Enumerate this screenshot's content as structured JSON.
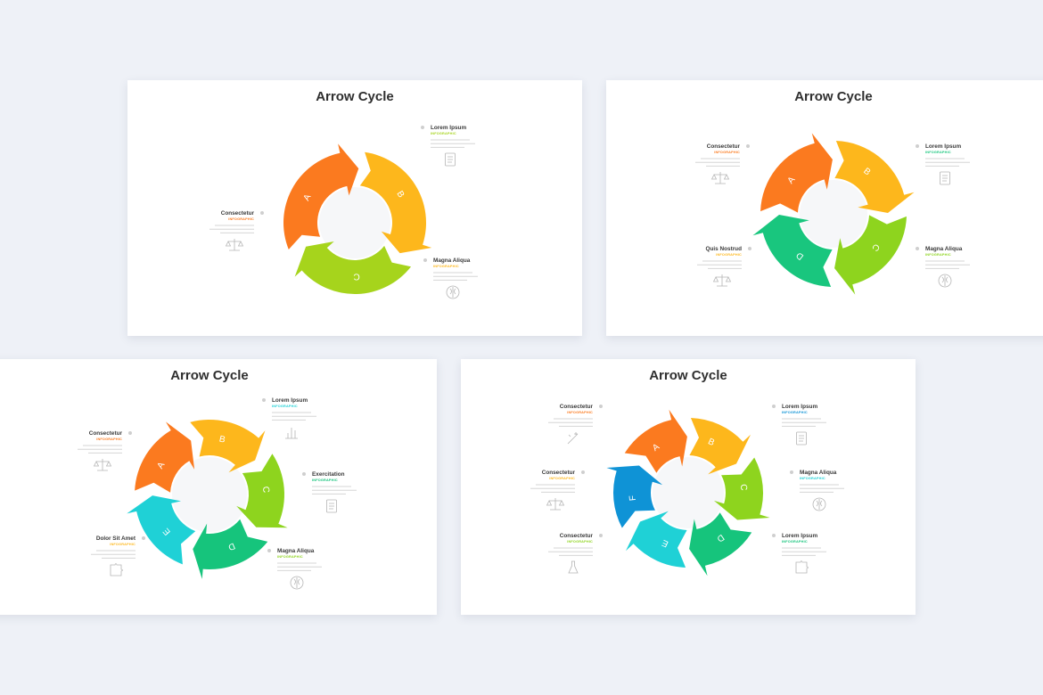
{
  "slides": [
    {
      "id": "s1",
      "title": "Arrow Cycle",
      "segments": [
        {
          "letter": "A",
          "color": "#fb7a1f",
          "label": "Consectetur",
          "sub": "INFOGRAPHIC",
          "icon": "scale-icon"
        },
        {
          "letter": "B",
          "color": "#fdb71c",
          "label": "Magna Aliqua",
          "sub": "INFOGRAPHIC",
          "icon": "brain-icon"
        },
        {
          "letter": "C",
          "color": "#a6d41c",
          "label": "Lorem Ipsum",
          "sub": "INFOGRAPHIC",
          "icon": "clipboard-icon"
        }
      ]
    },
    {
      "id": "s2",
      "title": "Arrow Cycle",
      "segments": [
        {
          "letter": "A",
          "color": "#fb7a1f",
          "label": "Consectetur",
          "sub": "INFOGRAPHIC",
          "icon": "scale-icon"
        },
        {
          "letter": "B",
          "color": "#fdb71c",
          "label": "Quis Nostrud",
          "sub": "INFOGRAPHIC",
          "icon": "scale-icon"
        },
        {
          "letter": "C",
          "color": "#8ed41e",
          "label": "Magna Aliqua",
          "sub": "INFOGRAPHIC",
          "icon": "brain-icon"
        },
        {
          "letter": "D",
          "color": "#19c67e",
          "label": "Lorem Ipsum",
          "sub": "INFOGRAPHIC",
          "icon": "clipboard-icon"
        }
      ]
    },
    {
      "id": "s3",
      "title": "Arrow Cycle",
      "segments": [
        {
          "letter": "A",
          "color": "#fb7a1f",
          "label": "Consectetur",
          "sub": "INFOGRAPHIC",
          "icon": "scale-icon"
        },
        {
          "letter": "B",
          "color": "#fdb71c",
          "label": "Dolor Sit Amet",
          "sub": "INFOGRAPHIC",
          "icon": "puzzle-icon"
        },
        {
          "letter": "C",
          "color": "#8ed41e",
          "label": "Magna Aliqua",
          "sub": "INFOGRAPHIC",
          "icon": "brain-icon"
        },
        {
          "letter": "D",
          "color": "#16c47c",
          "label": "Exercitation",
          "sub": "INFOGRAPHIC",
          "icon": "clipboard-icon"
        },
        {
          "letter": "E",
          "color": "#1fd1d6",
          "label": "Lorem Ipsum",
          "sub": "INFOGRAPHIC",
          "icon": "chart-icon"
        }
      ]
    },
    {
      "id": "s4",
      "title": "Arrow Cycle",
      "segments": [
        {
          "letter": "A",
          "color": "#fb7a1f",
          "label": "Consectetur",
          "sub": "INFOGRAPHIC",
          "icon": "wand-icon"
        },
        {
          "letter": "B",
          "color": "#fdb71c",
          "label": "Consectetur",
          "sub": "INFOGRAPHIC",
          "icon": "scale-icon"
        },
        {
          "letter": "C",
          "color": "#8ed41e",
          "label": "Consectetur",
          "sub": "INFOGRAPHIC",
          "icon": "flask-icon"
        },
        {
          "letter": "D",
          "color": "#16c47c",
          "label": "Lorem Ipsum",
          "sub": "INFOGRAPHIC",
          "icon": "puzzle-icon"
        },
        {
          "letter": "E",
          "color": "#1fd1d6",
          "label": "Magna Aliqua",
          "sub": "INFOGRAPHIC",
          "icon": "brain-icon"
        },
        {
          "letter": "F",
          "color": "#0f93d6",
          "label": "Lorem Ipsum",
          "sub": "INFOGRAPHIC",
          "icon": "clipboard-icon"
        }
      ]
    }
  ]
}
